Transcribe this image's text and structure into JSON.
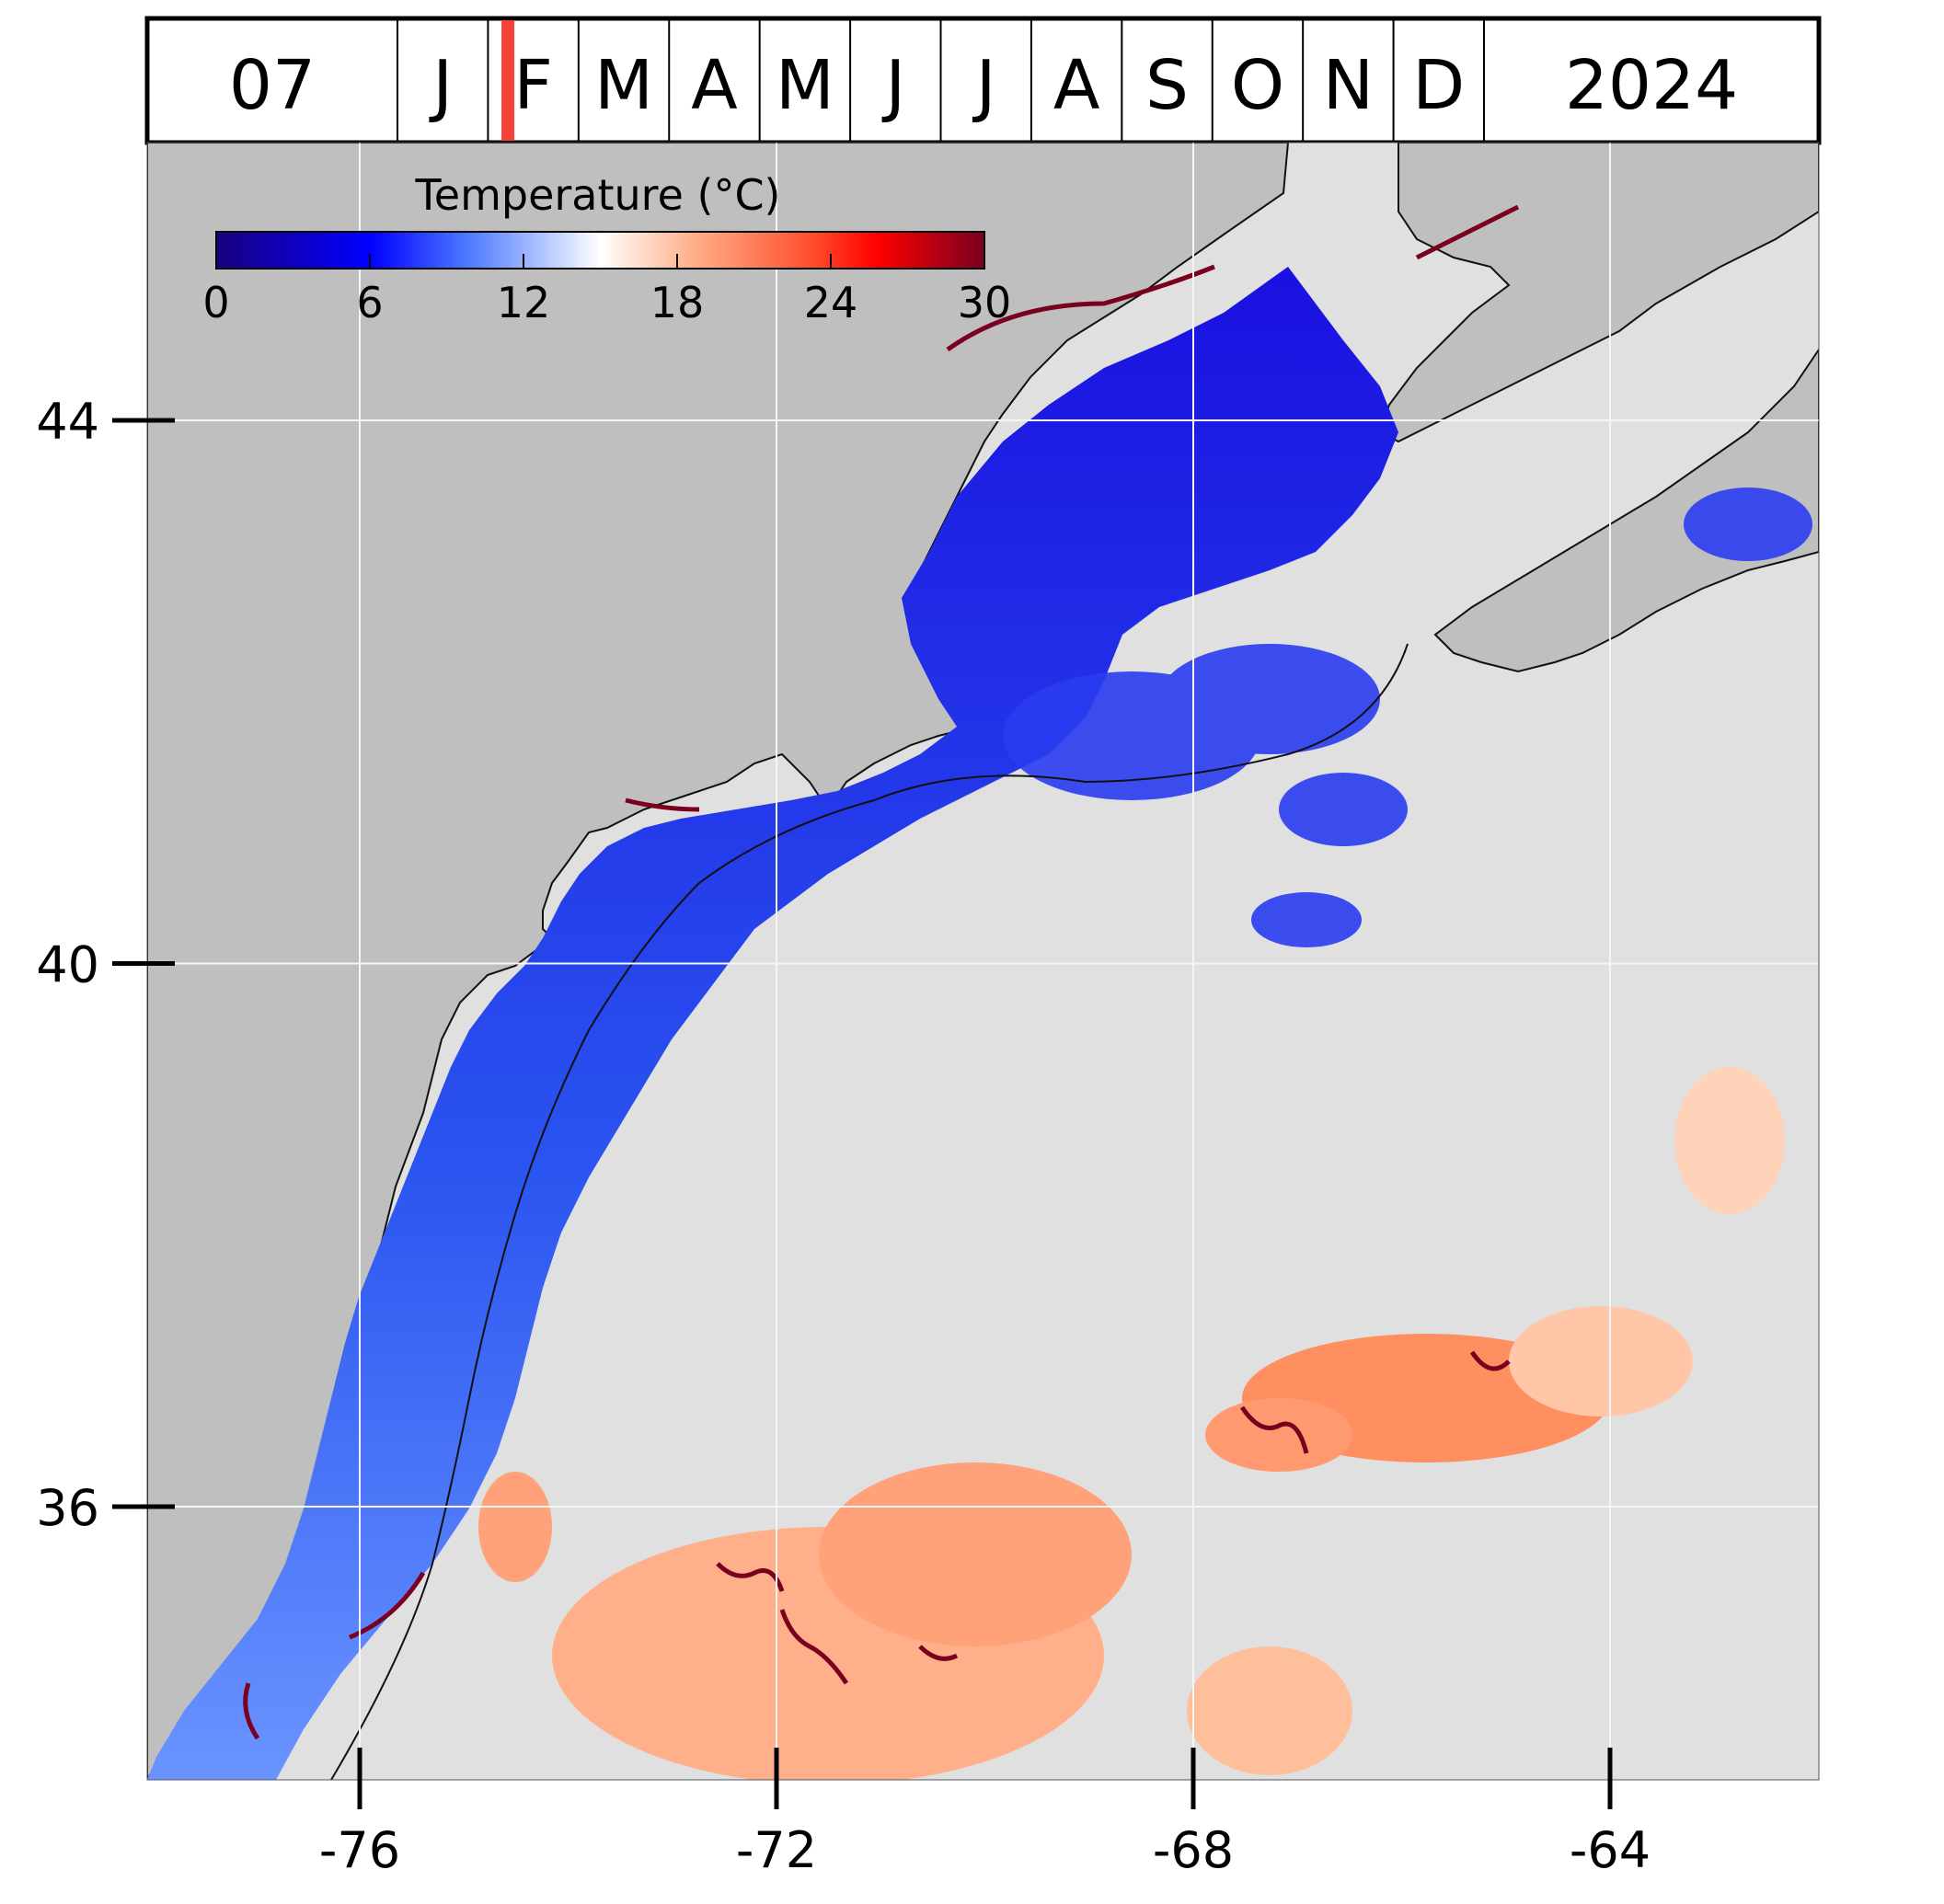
{
  "timeline": {
    "day": "07",
    "months": [
      "J",
      "F",
      "M",
      "A",
      "M",
      "J",
      "J",
      "A",
      "S",
      "O",
      "N",
      "D"
    ],
    "year": "2024",
    "current_month_index": 1,
    "marker_fraction_of_month": 0.22,
    "marker_color": "#f44336"
  },
  "colorbar": {
    "title": "Temperature (°C)",
    "min": 0,
    "max": 30,
    "ticks": [
      "0",
      "6",
      "12",
      "18",
      "24",
      "30"
    ],
    "colormap": "coolwarm-to-darkred",
    "colors": [
      "#1a0080",
      "#0000ff",
      "#4f7bff",
      "#ffffff",
      "#ffb08a",
      "#ff4a2a",
      "#ff0000",
      "#7a0020"
    ]
  },
  "map": {
    "land_color": "#bfbfbf",
    "ocean_nodata_color": "#e0e0e0",
    "grid_color": "#f5f5f5",
    "lon_ticks": [
      "-76",
      "-72",
      "-68",
      "-64"
    ],
    "lat_ticks": [
      "44",
      "40",
      "36"
    ],
    "lon_values": [
      -76,
      -72,
      -68,
      -64
    ],
    "lat_values": [
      44,
      40,
      36
    ]
  }
}
